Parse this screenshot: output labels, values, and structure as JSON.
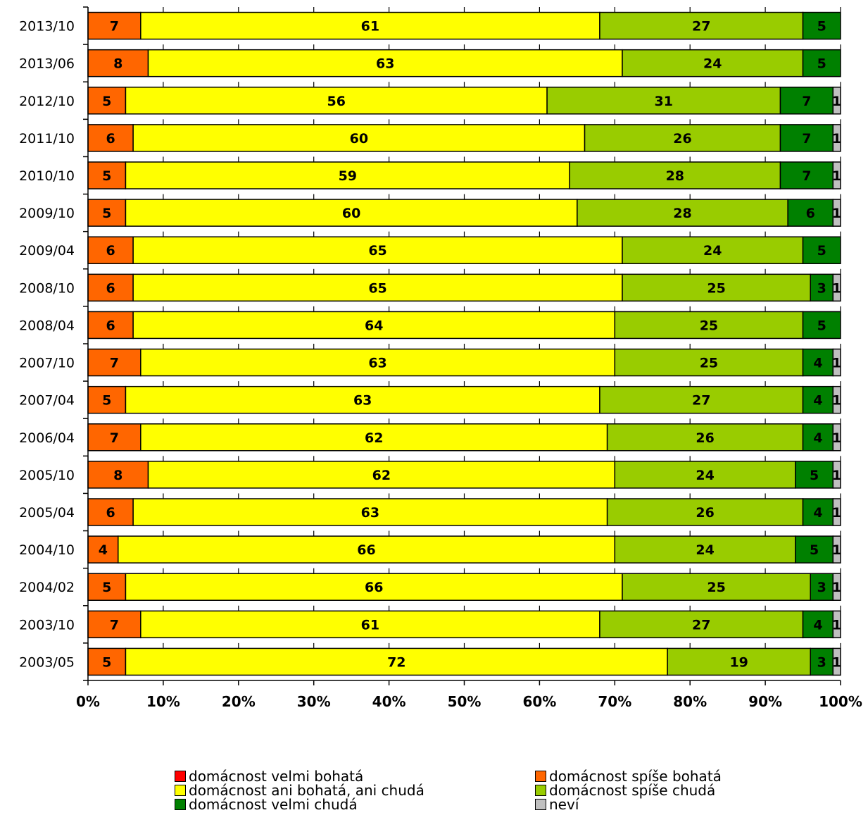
{
  "chart_data": {
    "type": "bar",
    "orientation": "horizontal",
    "stacked": "percent",
    "categories": [
      "2013/10",
      "2013/06",
      "2012/10",
      "2011/10",
      "2010/10",
      "2009/10",
      "2009/04",
      "2008/10",
      "2008/04",
      "2007/10",
      "2007/04",
      "2006/04",
      "2005/10",
      "2005/04",
      "2004/10",
      "2004/02",
      "2003/10",
      "2003/05"
    ],
    "series": [
      {
        "name": "domácnost velmi bohatá",
        "color": "#ff0000",
        "values": [
          0,
          0,
          0,
          0,
          0,
          0,
          0,
          0,
          0,
          0,
          0,
          0,
          0,
          0,
          0,
          0,
          0,
          0
        ]
      },
      {
        "name": "domácnost spíše bohatá",
        "color": "#ff6600",
        "values": [
          7,
          8,
          5,
          6,
          5,
          5,
          6,
          6,
          6,
          7,
          5,
          7,
          8,
          6,
          4,
          5,
          7,
          5
        ]
      },
      {
        "name": "domácnost ani bohatá, ani chudá",
        "color": "#ffff00",
        "values": [
          61,
          63,
          56,
          60,
          59,
          60,
          65,
          65,
          64,
          63,
          63,
          62,
          62,
          63,
          66,
          66,
          61,
          72
        ]
      },
      {
        "name": "domácnost spíše chudá",
        "color": "#99cc00",
        "values": [
          27,
          24,
          31,
          26,
          28,
          28,
          24,
          25,
          25,
          25,
          27,
          26,
          24,
          26,
          24,
          25,
          27,
          19
        ]
      },
      {
        "name": "domácnost velmi chudá",
        "color": "#008000",
        "values": [
          5,
          5,
          7,
          7,
          7,
          6,
          5,
          3,
          5,
          4,
          4,
          4,
          5,
          4,
          5,
          3,
          4,
          3
        ]
      },
      {
        "name": "neví",
        "color": "#c0c0c0",
        "values": [
          0,
          0,
          1,
          1,
          1,
          1,
          0,
          1,
          0,
          1,
          1,
          1,
          1,
          1,
          1,
          1,
          1,
          1
        ]
      }
    ],
    "xlim": [
      0,
      100
    ],
    "x_ticks": [
      "0%",
      "10%",
      "20%",
      "30%",
      "40%",
      "50%",
      "60%",
      "70%",
      "80%",
      "90%",
      "100%"
    ],
    "title": "",
    "xlabel": "",
    "ylabel": "",
    "legend_position": "bottom",
    "grid": false
  }
}
